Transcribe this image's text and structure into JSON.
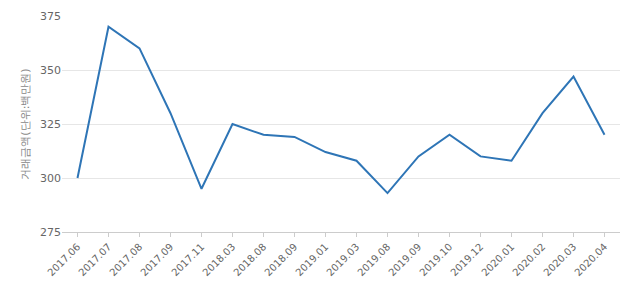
{
  "chart_data": {
    "type": "line",
    "y_label": "거래금액(단위:백만원)",
    "categories": [
      "2017.06",
      "2017.07",
      "2017.08",
      "2017.09",
      "2017.11",
      "2018.03",
      "2018.08",
      "2018.09",
      "2019.01",
      "2019.03",
      "2019.08",
      "2019.09",
      "2019.10",
      "2019.12",
      "2020.01",
      "2020.02",
      "2020.03",
      "2020.04"
    ],
    "values": [
      300,
      370,
      360,
      330,
      295,
      325,
      320,
      319,
      312,
      308,
      293,
      310,
      320,
      310,
      308,
      330,
      347,
      320
    ],
    "color": "#2e75b6",
    "ylim": [
      275,
      375
    ],
    "yticks": [
      275,
      300,
      325,
      350,
      375
    ],
    "grid": true
  }
}
